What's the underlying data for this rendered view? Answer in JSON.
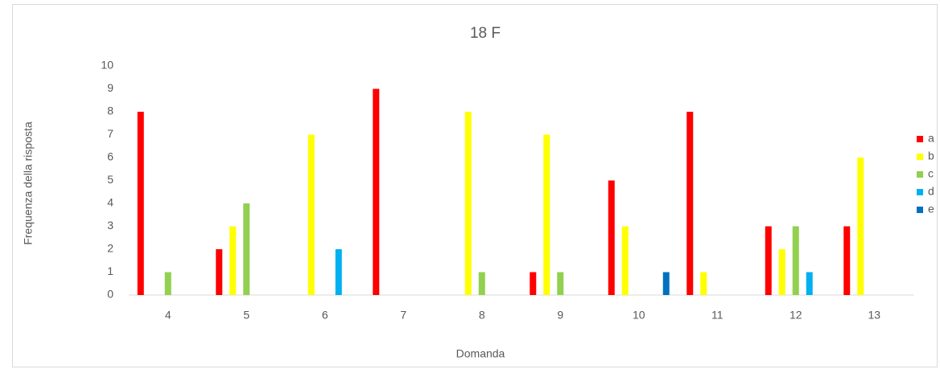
{
  "chart_data": {
    "type": "bar",
    "title": "18 F",
    "x_label": "Domanda",
    "y_label": "Frequenza della risposta",
    "categories": [
      "4",
      "5",
      "6",
      "7",
      "8",
      "9",
      "10",
      "11",
      "12",
      "13"
    ],
    "series": [
      {
        "name": "a",
        "color": "#ff0000",
        "values": [
          8,
          2,
          0,
          9,
          0,
          1,
          5,
          8,
          3,
          3
        ]
      },
      {
        "name": "b",
        "color": "#ffff00",
        "values": [
          0,
          3,
          7,
          0,
          8,
          7,
          3,
          1,
          2,
          6
        ]
      },
      {
        "name": "c",
        "color": "#92d050",
        "values": [
          1,
          4,
          0,
          0,
          1,
          1,
          0,
          0,
          3,
          0
        ]
      },
      {
        "name": "d",
        "color": "#00b0f0",
        "values": [
          0,
          0,
          2,
          0,
          0,
          0,
          0,
          0,
          1,
          0
        ]
      },
      {
        "name": "e",
        "color": "#0070c0",
        "values": [
          0,
          0,
          0,
          0,
          0,
          0,
          1,
          0,
          0,
          0
        ]
      }
    ],
    "ylim": [
      0,
      10
    ],
    "yticks": [
      0,
      1,
      2,
      3,
      4,
      5,
      6,
      7,
      8,
      9,
      10
    ],
    "grid": false,
    "legend": "right"
  }
}
